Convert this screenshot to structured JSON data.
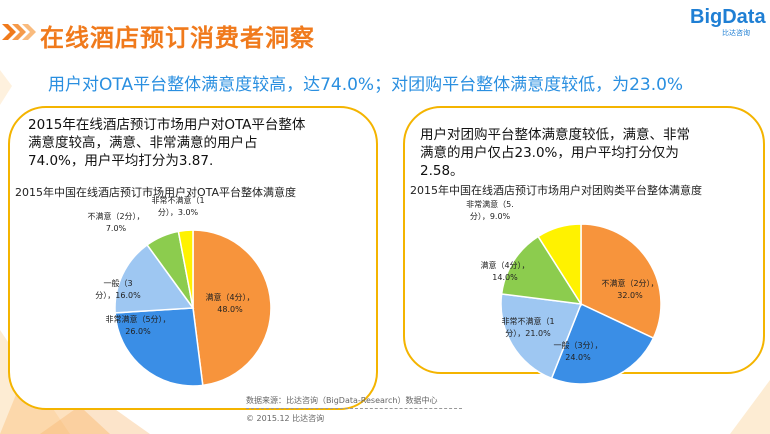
{
  "header": {
    "title": "在线酒店预订消费者洞察",
    "logo_text": "BigData",
    "logo_sub": "比达咨询",
    "subtitle": "用户对OTA平台整体满意度较高，达74.0%；对团购平台整体满意度较低，为23.0%"
  },
  "panels": [
    {
      "desc_lines": [
        "2015年在线酒店预订市场用户对OTA平台整体",
        "满意度较高，满意、非常满意的用户占",
        "74.0%，用户平均打分为3.87."
      ]
    },
    {
      "desc_lines": [
        "用户对团购平台整体满意度较低，满意、非常",
        "满意的用户仅占23.0%，用户平均打分仅为",
        "2.58。"
      ]
    }
  ],
  "chart_data": [
    {
      "type": "pie",
      "title": "2015年中国在线酒店预订市场用户对OTA平台整体满意度",
      "slices": [
        {
          "label_lines": [
            "满意（4分），",
            "48.0%"
          ],
          "value": 48.0,
          "color": "#f7943c"
        },
        {
          "label_lines": [
            "非常满意（5分），",
            "26.0%"
          ],
          "value": 26.0,
          "color": "#3a8ee6"
        },
        {
          "label_lines": [
            "一般（3",
            "分），16.0%"
          ],
          "value": 16.0,
          "color": "#9ec7f2"
        },
        {
          "label_lines": [
            "不满意（2分），",
            "7.0%"
          ],
          "value": 7.0,
          "color": "#8ccc4e"
        },
        {
          "label_lines": [
            "非常不满意（1",
            "分），3.0%"
          ],
          "value": 3.0,
          "color": "#fff200"
        }
      ]
    },
    {
      "type": "pie",
      "title": "2015年中国在线酒店预订市场用户对团购类平台整体满意度",
      "slices": [
        {
          "label_lines": [
            "不满意（2分），",
            "32.0%"
          ],
          "value": 32.0,
          "color": "#f7943c"
        },
        {
          "label_lines": [
            "一般（3分），",
            "24.0%"
          ],
          "value": 24.0,
          "color": "#3a8ee6"
        },
        {
          "label_lines": [
            "非常不满意（1",
            "分），21.0%"
          ],
          "value": 21.0,
          "color": "#9ec7f2"
        },
        {
          "label_lines": [
            "满意（4分），",
            "14.0%"
          ],
          "value": 14.0,
          "color": "#8ccc4e"
        },
        {
          "label_lines": [
            "非常满意（5.",
            "分），9.0%"
          ],
          "value": 9.0,
          "color": "#fff200"
        }
      ]
    }
  ],
  "footer": {
    "source": "数据来源：比达咨询（BigData-Research）数据中心",
    "copyright": "© 2015.12  比达咨询"
  }
}
